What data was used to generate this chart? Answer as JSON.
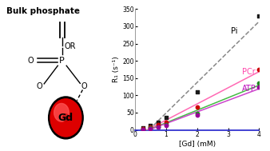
{
  "title_text": "Bulk phosphate",
  "xlabel": "[Gd] (mM)",
  "ylabel": "R₁ (s⁻¹)",
  "xlim": [
    0,
    4
  ],
  "ylim": [
    0,
    350
  ],
  "xticks": [
    0,
    1,
    2,
    3,
    4
  ],
  "yticks": [
    0,
    50,
    100,
    150,
    200,
    250,
    300,
    350
  ],
  "Pi_x": [
    0.25,
    0.5,
    0.75,
    1.0,
    2.0,
    4.0
  ],
  "Pi_y": [
    5,
    12,
    22,
    35,
    110,
    330
  ],
  "Pi_color": "#1a1a1a",
  "Pi_line_color": "#888888",
  "Pi_label": "Pi",
  "PCr_x": [
    0.25,
    0.5,
    0.75,
    1.0,
    2.0,
    4.0
  ],
  "PCr_y": [
    3,
    8,
    14,
    22,
    65,
    175
  ],
  "PCr_color": "#cc0000",
  "PCr_line_color": "#ff69b4",
  "PCr_label": "PCr",
  "ATP_green_x": [
    0.25,
    0.5,
    0.75,
    1.0,
    2.0,
    4.0
  ],
  "ATP_green_y": [
    2,
    5,
    9,
    15,
    48,
    135
  ],
  "ATP_green_color": "#228b22",
  "ATP_green_line_color": "#44bb44",
  "ATP_purple_x": [
    0.25,
    0.5,
    0.75,
    1.0,
    2.0,
    4.0
  ],
  "ATP_purple_y": [
    2,
    4,
    8,
    13,
    42,
    125
  ],
  "ATP_purple_color": "#990099",
  "ATP_purple_line_color": "#cc44cc",
  "ATP_label": "ATP",
  "background_color": "#ffffff",
  "fig_width": 3.38,
  "fig_height": 1.89,
  "fig_dpi": 100
}
